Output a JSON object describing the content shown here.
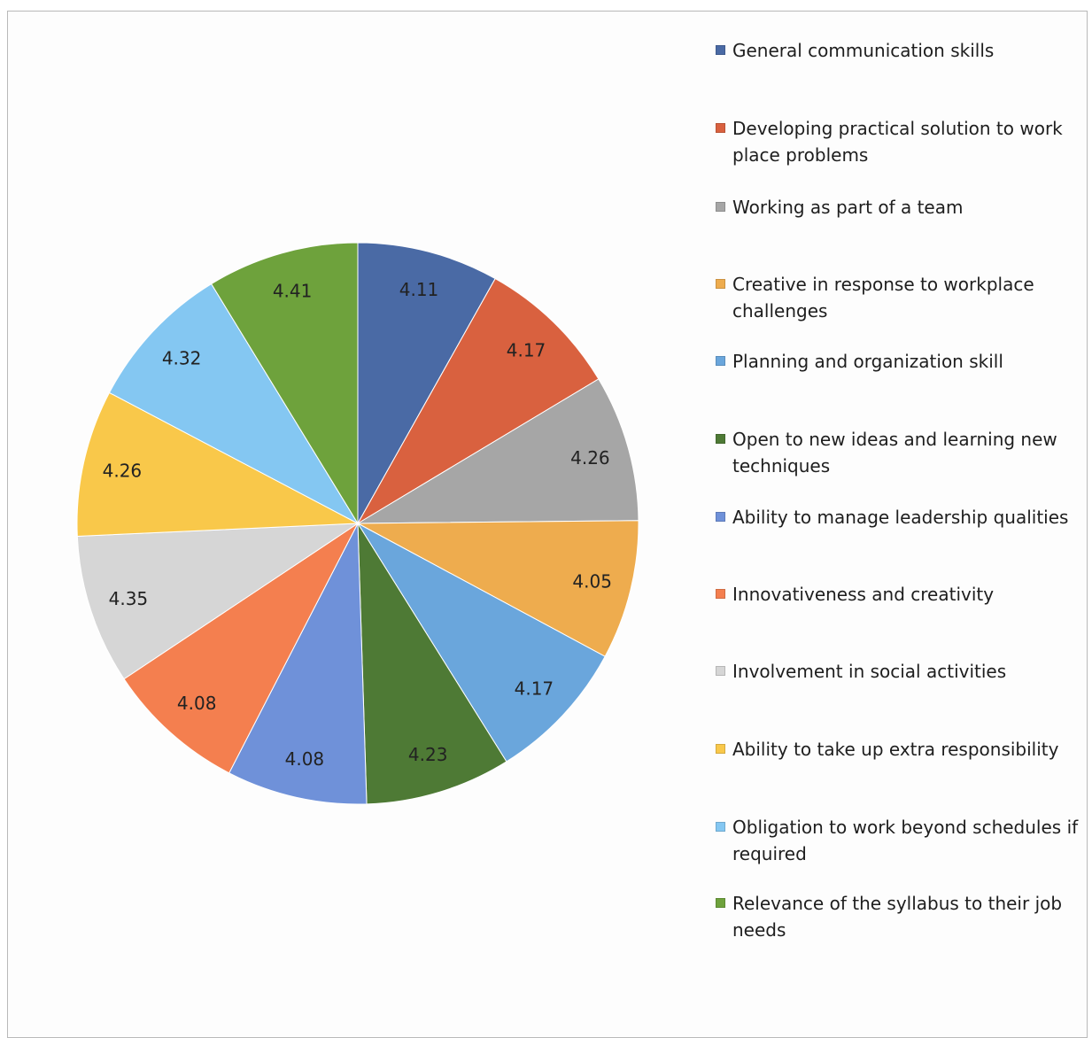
{
  "chart_data": {
    "type": "pie",
    "title": "",
    "slices": [
      {
        "label": "General communication skills",
        "value": 4.11,
        "color": "#4a6aa5"
      },
      {
        "label": "Developing practical solution to work place problems",
        "value": 4.17,
        "color": "#d9613f"
      },
      {
        "label": "Working as part of a team",
        "value": 4.26,
        "color": "#a6a6a6"
      },
      {
        "label": "Creative in response to workplace challenges",
        "value": 4.05,
        "color": "#eeac4e"
      },
      {
        "label": "Planning and organization skill",
        "value": 4.17,
        "color": "#6aa6dc"
      },
      {
        "label": "Open to new ideas and learning new techniques",
        "value": 4.23,
        "color": "#4e7a35"
      },
      {
        "label": "Ability to manage leadership qualities",
        "value": 4.08,
        "color": "#6f91d9"
      },
      {
        "label": "Innovativeness and creativity",
        "value": 4.08,
        "color": "#f47f4f"
      },
      {
        "label": "Involvement in social activities",
        "value": 4.35,
        "color": "#d6d6d6"
      },
      {
        "label": "Ability to take up extra responsibility",
        "value": 4.26,
        "color": "#f9c84a"
      },
      {
        "label": "Obligation to work beyond schedules if required",
        "value": 4.32,
        "color": "#84c7f2"
      },
      {
        "label": "Relevance of the syllabus to their job needs",
        "value": 4.41,
        "color": "#6ea23c"
      }
    ],
    "legend_position": "right"
  }
}
